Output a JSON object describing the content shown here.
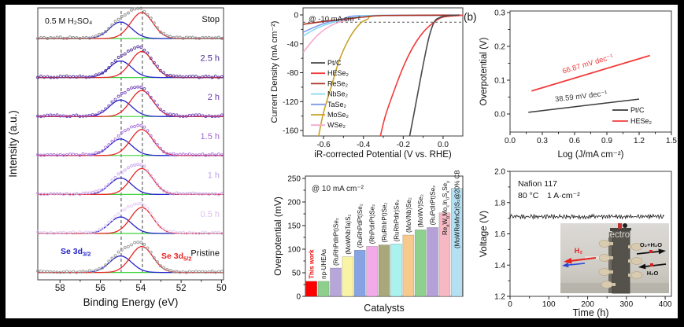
{
  "figure": {
    "border_color": "#000000",
    "panel_bg": "#ffffff"
  },
  "chart_data": [
    {
      "id": "xps",
      "type": "line",
      "electrolyte_label": "0.5 M H₂SO₄",
      "xlabel": "Binding Energy (eV)",
      "ylabel": "Intensity (a.u.)",
      "x_tick_labels": [
        "58",
        "56",
        "54",
        "52",
        "50"
      ],
      "x_tick_values": [
        58,
        56,
        54,
        52,
        50
      ],
      "xlim": [
        59.1,
        49.9
      ],
      "dashed_x": [
        54.97,
        53.92
      ],
      "baseline_color": "#3bd43b",
      "fit_blue_color": "#2424cc",
      "fit_red_color": "#e82525",
      "peaks": {
        "blue_center": 55.0,
        "red_center": 53.95,
        "sigma": 0.55,
        "blue_rel_amp": 21,
        "red_rel_amp": 33
      },
      "peak_labels": [
        {
          "text": "Se 3d_{3/2}",
          "color": "#2424cc"
        },
        {
          "text": "Se 3d_{5/2}",
          "color": "#e82525"
        }
      ],
      "spectra": [
        {
          "label": "Stop",
          "scatter_color": "#8f8f8f",
          "label_color": "#111111"
        },
        {
          "label": "2.5 h",
          "scatter_color": "#5b3a9e",
          "label_color": "#4b2a91"
        },
        {
          "label": "2 h",
          "scatter_color": "#7a4cc0",
          "label_color": "#6d3cb0"
        },
        {
          "label": "1.5 h",
          "scatter_color": "#ad77dc",
          "label_color": "#a268d4"
        },
        {
          "label": "1 h",
          "scatter_color": "#cdaaec",
          "label_color": "#c49fe8"
        },
        {
          "label": "0.5 h",
          "scatter_color": "#e4cdf4",
          "label_color": "#ddc2ef"
        },
        {
          "label": "Pristine",
          "scatter_color": "#9a9a9a",
          "label_color": "#111111"
        }
      ]
    },
    {
      "id": "lsv",
      "type": "line",
      "annotation": "@ -10 mA cm⁻²",
      "xlabel": "iR-corrected Potential (V vs. RHE)",
      "ylabel": "Current Density (mA cm⁻²)",
      "x_tick_labels": [
        "-0.6",
        "-0.4",
        "-0.2",
        "0.0"
      ],
      "x_tick_values": [
        -0.6,
        -0.4,
        -0.2,
        0.0
      ],
      "y_tick_labels": [
        "0",
        "-40",
        "-80",
        "-120",
        "-160"
      ],
      "y_tick_values": [
        0,
        -40,
        -80,
        -120,
        -160
      ],
      "xlim": [
        -0.703,
        0.099
      ],
      "ylim": [
        -167.6,
        9.8
      ],
      "dashed_y": -10,
      "series": [
        {
          "name": "Pt/C",
          "color": "#4a4a4a",
          "points": [
            [
              0.08,
              -0.2
            ],
            [
              0.02,
              -1
            ],
            [
              -0.02,
              -4
            ],
            [
              -0.045,
              -10
            ],
            [
              -0.07,
              -30
            ],
            [
              -0.095,
              -62
            ],
            [
              -0.12,
              -98
            ],
            [
              -0.145,
              -135
            ],
            [
              -0.168,
              -168
            ]
          ]
        },
        {
          "name": "HESe₂",
          "color": "#f23b3b",
          "points": [
            [
              0.099,
              -0.5
            ],
            [
              0.0,
              -3
            ],
            [
              -0.05,
              -11
            ],
            [
              -0.1,
              -24
            ],
            [
              -0.15,
              -44
            ],
            [
              -0.2,
              -72
            ],
            [
              -0.25,
              -108
            ],
            [
              -0.29,
              -140
            ],
            [
              -0.315,
              -168
            ]
          ]
        },
        {
          "name": "ReSe₂",
          "color": "#a93226",
          "points": [
            [
              0.09,
              -0.3
            ],
            [
              -0.3,
              -0.8
            ],
            [
              -0.4,
              -3
            ],
            [
              -0.5,
              -6
            ],
            [
              -0.6,
              -9
            ],
            [
              -0.703,
              -13
            ]
          ]
        },
        {
          "name": "NbSe₂",
          "color": "#85d8f5",
          "points": [
            [
              0.09,
              -0.4
            ],
            [
              -0.36,
              -0.8
            ],
            [
              -0.45,
              -4
            ],
            [
              -0.55,
              -10
            ],
            [
              -0.63,
              -18
            ],
            [
              -0.703,
              -29
            ]
          ]
        },
        {
          "name": "TaSe₂",
          "color": "#7d9bed",
          "points": [
            [
              0.09,
              -0.6
            ],
            [
              -0.4,
              -1
            ],
            [
              -0.5,
              -5
            ],
            [
              -0.6,
              -12
            ],
            [
              -0.703,
              -24
            ]
          ]
        },
        {
          "name": "MoSe₂",
          "color": "#c9a227",
          "points": [
            [
              0.09,
              -0.5
            ],
            [
              -0.32,
              -1
            ],
            [
              -0.38,
              -6
            ],
            [
              -0.42,
              -13
            ],
            [
              -0.47,
              -32
            ],
            [
              -0.52,
              -62
            ],
            [
              -0.56,
              -98
            ],
            [
              -0.6,
              -135
            ],
            [
              -0.625,
              -168
            ]
          ]
        },
        {
          "name": "WSe₂",
          "color": "#f7a8cf",
          "points": [
            [
              0.09,
              -0.2
            ],
            [
              -0.34,
              -0.7
            ],
            [
              -0.45,
              -5
            ],
            [
              -0.55,
              -13
            ],
            [
              -0.63,
              -28
            ],
            [
              -0.703,
              -52
            ]
          ]
        }
      ]
    },
    {
      "id": "tafel",
      "type": "line",
      "panel_label": "(b)",
      "xlabel": "Log (J/mA cm⁻²)",
      "ylabel": "Overpotential (V)",
      "x_tick_labels": [
        "0.0",
        "0.3",
        "0.6",
        "0.9",
        "1.2",
        "1.5"
      ],
      "x_tick_values": [
        0,
        0.3,
        0.6,
        0.9,
        1.2,
        1.5
      ],
      "y_tick_labels": [
        "0.0",
        "0.1",
        "0.2",
        "0.3"
      ],
      "y_tick_values": [
        0,
        0.1,
        0.2,
        0.3
      ],
      "xlim": [
        0,
        1.5
      ],
      "ylim": [
        -0.053,
        0.305
      ],
      "lines": [
        {
          "name": "Pt/C",
          "color": "#3a3a3a",
          "slope_label": "38.59 mV dec⁻¹",
          "x1": 0.17,
          "y1": 0.005,
          "x2": 1.2,
          "y2": 0.044
        },
        {
          "name": "HESe₂",
          "color": "#f23b3b",
          "slope_label": "66.87 mV dec⁻¹",
          "x1": 0.2,
          "y1": 0.068,
          "x2": 1.3,
          "y2": 0.173
        }
      ]
    },
    {
      "id": "bars",
      "type": "bar",
      "annotation": "@ 10 mA cm⁻²",
      "xlabel": "Catalysts",
      "ylabel": "Overpotential (mV)",
      "y_tick_labels": [
        "0",
        "50",
        "100",
        "150",
        "200",
        "250"
      ],
      "y_tick_values": [
        0,
        50,
        100,
        150,
        200,
        250
      ],
      "ylim": [
        0,
        255
      ],
      "bars": [
        {
          "label": "This work",
          "value": 32,
          "color": "#ff0000",
          "label_color": "#ee1111",
          "bold": true
        },
        {
          "label": "np-UHEAs",
          "value": 32,
          "color": "#8ecf8e",
          "label_color": "#111111"
        },
        {
          "label": "(RuRhPdIrPt)Se₂",
          "value": 60,
          "color": "#b7a6d9",
          "label_color": "#111111"
        },
        {
          "label": "(MoWNbTa)S₂",
          "value": 84,
          "color": "#f9f3a6",
          "label_color": "#111111"
        },
        {
          "label": "(RuRhPdPt)Se₂",
          "value": 98,
          "color": "#86a3e3",
          "label_color": "#111111"
        },
        {
          "label": "(RhPdIrPt)Se₂",
          "value": 106,
          "color": "#f2aae8",
          "label_color": "#111111"
        },
        {
          "label": "(RuRhIrPt)Se₂",
          "value": 109,
          "color": "#a9a87b",
          "label_color": "#111111"
        },
        {
          "label": "(RuRhPdIr)Se₂",
          "value": 111,
          "color": "#aaf2ef",
          "label_color": "#111111"
        },
        {
          "label": "(MoVNb)Se₂",
          "value": 130,
          "color": "#f7c98c",
          "label_color": "#111111"
        },
        {
          "label": "(MoWV)Se₂",
          "value": 141,
          "color": "#8ed08e",
          "label_color": "#111111"
        },
        {
          "label": "(RuPdIrPt)Se₂",
          "value": 146,
          "color": "#b5a0d8",
          "label_color": "#111111"
        },
        {
          "label": "Re_{a}W_{b}Mo_{c}In_{d}S_{x}Se_{y}",
          "value": 177,
          "color": "#f6b9c3",
          "label_color": "#111111"
        },
        {
          "label": "(MoWReMnCr)S₂@20% CB",
          "value": 229,
          "color": "#b5e0f2",
          "label_color": "#111111"
        }
      ]
    },
    {
      "id": "stability",
      "type": "line",
      "membrane_label": "Nafion 117",
      "temp_label": "80 °C",
      "current_label": "1 A·cm⁻²",
      "xlabel": "Time (h)",
      "ylabel": "Voltage (V)",
      "x_tick_labels": [
        "0",
        "100",
        "200",
        "300",
        "400"
      ],
      "x_tick_values": [
        0,
        100,
        200,
        300,
        400
      ],
      "y_tick_labels": [
        "1.2",
        "1.4",
        "1.6",
        "1.8",
        "2.0"
      ],
      "y_tick_values": [
        1.2,
        1.4,
        1.6,
        1.8,
        2.0
      ],
      "xlim": [
        0,
        416
      ],
      "ylim": [
        1.2,
        2.0
      ],
      "trace": {
        "level": 1.71,
        "start": 0,
        "end": 397,
        "color": "#1a1a1a"
      },
      "inset": {
        "title": "PEM electrolyser",
        "title_color": "#d6d5d1",
        "h2_label": "H₂",
        "h2_color": "#e82020",
        "o2_label": "O₂+H₂O",
        "h2o_label": "H₂O",
        "arrow_color": "#111111"
      }
    }
  ]
}
